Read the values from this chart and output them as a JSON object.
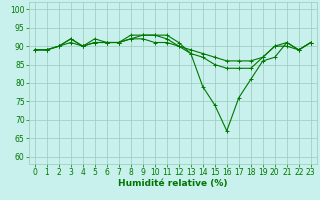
{
  "x": [
    0,
    1,
    2,
    3,
    4,
    5,
    6,
    7,
    8,
    9,
    10,
    11,
    12,
    13,
    14,
    15,
    16,
    17,
    18,
    19,
    20,
    21,
    22,
    23
  ],
  "line1": [
    89,
    89,
    90,
    92,
    90,
    92,
    91,
    91,
    93,
    93,
    93,
    93,
    91,
    88,
    79,
    74,
    67,
    76,
    81,
    86,
    87,
    91,
    89,
    91
  ],
  "line2": [
    89,
    89,
    90,
    91,
    90,
    91,
    91,
    91,
    92,
    93,
    93,
    92,
    90,
    88,
    87,
    85,
    84,
    84,
    84,
    87,
    90,
    90,
    89,
    91
  ],
  "line3": [
    89,
    89,
    90,
    92,
    90,
    91,
    91,
    91,
    92,
    92,
    91,
    91,
    90,
    89,
    88,
    87,
    86,
    86,
    86,
    87,
    90,
    91,
    89,
    91
  ],
  "xlabel": "Humidité relative (%)",
  "ylim": [
    58,
    102
  ],
  "xlim": [
    -0.5,
    23.5
  ],
  "yticks": [
    60,
    65,
    70,
    75,
    80,
    85,
    90,
    95,
    100
  ],
  "xticks": [
    0,
    1,
    2,
    3,
    4,
    5,
    6,
    7,
    8,
    9,
    10,
    11,
    12,
    13,
    14,
    15,
    16,
    17,
    18,
    19,
    20,
    21,
    22,
    23
  ],
  "bg_color": "#c8f0ec",
  "grid_color": "#99ccbb",
  "line_color": "#007700",
  "marker": "+",
  "marker_size": 3,
  "linewidth": 0.8,
  "xlabel_fontsize": 6.5,
  "tick_fontsize": 5.5
}
